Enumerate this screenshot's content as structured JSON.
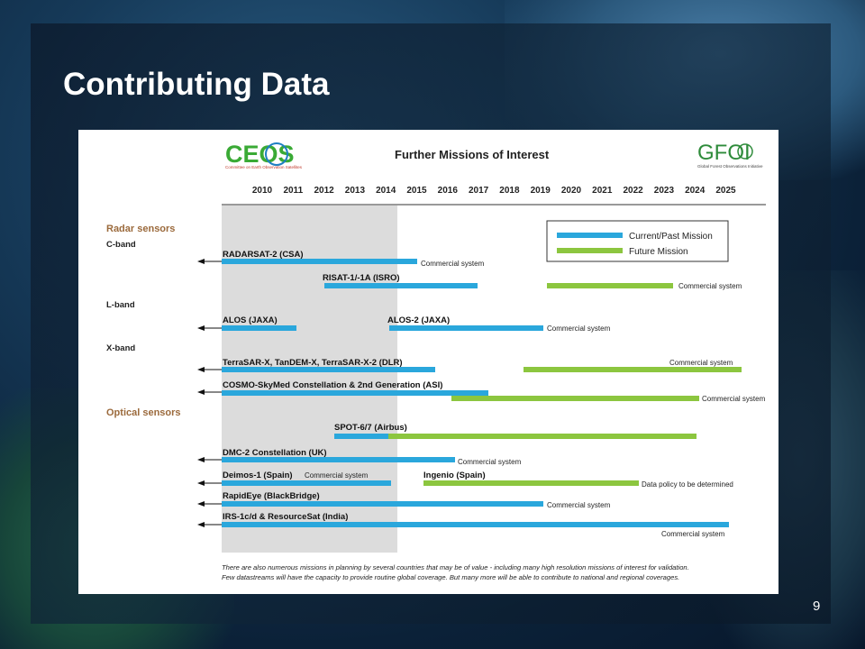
{
  "slide": {
    "title": "Contributing Data",
    "page_number": "9"
  },
  "figure": {
    "ceos_logo_text": "CEOS",
    "ceos_subtitle": "Committee on Earth Observation Satellites",
    "gfoi_logo_text": "GFOI",
    "gfoi_subtitle": "Global Forest Observations Initiative",
    "heading": "Further Missions of Interest",
    "years": [
      "2010",
      "2011",
      "2012",
      "2013",
      "2014",
      "2015",
      "2016",
      "2017",
      "2018",
      "2019",
      "2020",
      "2021",
      "2022",
      "2023",
      "2024",
      "2025"
    ],
    "legend": {
      "current_label": "Current/Past Mission",
      "future_label": "Future Mission",
      "current_color": "#2aa7dc",
      "future_color": "#8cc63f"
    },
    "section_color": "#9b6a3c",
    "sections": {
      "radar": "Radar sensors",
      "optical": "Optical sensors"
    },
    "bands": {
      "c": "C-band",
      "l": "L-band",
      "x": "X-band"
    },
    "missions": [
      {
        "label": "RADARSAT-2 (CSA)",
        "note": "Commercial system"
      },
      {
        "label": "RISAT-1/-1A (ISRO)",
        "note": "Commercial system"
      },
      {
        "label": "ALOS (JAXA)",
        "note": ""
      },
      {
        "label": "ALOS-2 (JAXA)",
        "note": "Commercial system"
      },
      {
        "label": "TerraSAR-X, TanDEM-X, TerraSAR-X-2 (DLR)",
        "note": "Commercial system"
      },
      {
        "label": "COSMO-SkyMed Constellation & 2nd Generation (ASI)",
        "note": "Commercial system"
      },
      {
        "label": "SPOT-6/7 (Airbus)",
        "note": ""
      },
      {
        "label": "DMC-2 Constellation (UK)",
        "note": "Commercial system"
      },
      {
        "label": "Deimos-1 (Spain)",
        "note": "Commercial system"
      },
      {
        "label": "Ingenio (Spain)",
        "note": "Data policy to be determined"
      },
      {
        "label": "RapidEye (BlackBridge)",
        "note": "Commercial system"
      },
      {
        "label": "IRS-1c/d & ResourceSat (India)",
        "note": "Commercial system"
      }
    ],
    "footnote_line1": "There are also numerous missions in planning by several countries that may be of value - including many high resolution missions of interest for validation.",
    "footnote_line2": "Few datastreams will have the capacity to provide routine global coverage. But many more will be able to contribute to national and regional coverages."
  }
}
